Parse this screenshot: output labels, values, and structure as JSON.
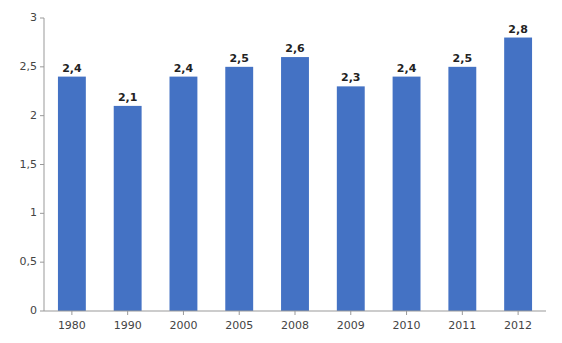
{
  "chart_data": {
    "type": "bar",
    "categories": [
      "1980",
      "1990",
      "2000",
      "2005",
      "2008",
      "2009",
      "2010",
      "2011",
      "2012"
    ],
    "values": [
      2.4,
      2.1,
      2.4,
      2.5,
      2.6,
      2.3,
      2.4,
      2.5,
      2.8
    ],
    "value_labels": [
      "2,4",
      "2,1",
      "2,4",
      "2,5",
      "2,6",
      "2,3",
      "2,4",
      "2,5",
      "2,8"
    ],
    "data_labels": true,
    "color": "#4472C4",
    "ylim": [
      0,
      3.0
    ],
    "yticks": [
      0,
      {
        "value": 0.5,
        "label": "0,5"
      },
      1,
      {
        "value": 1.5,
        "label": "1,5"
      },
      2,
      {
        "value": 2.5,
        "label": "2,5"
      },
      3
    ],
    "grid": false
  }
}
